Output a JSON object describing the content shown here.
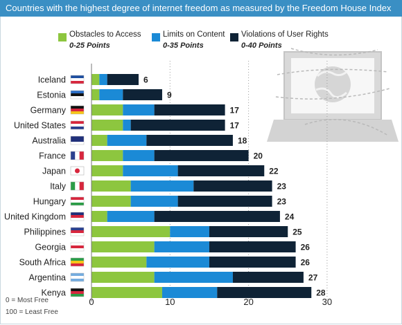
{
  "title": "Countries with the highest degree of internet freedom as measured by the Freedom House Index",
  "legend": [
    {
      "label": "Obstacles to Access",
      "range": "0-25 Points"
    },
    {
      "label": "Limits on Content",
      "range": "0-35 Points"
    },
    {
      "label": "Violations of User Rights",
      "range": "0-40 Points"
    }
  ],
  "notes": {
    "most_free": "0 = Most Free",
    "least_free": "100 = Least Free"
  },
  "colors": {
    "access": "#8dc63f",
    "content": "#1b8ad6",
    "violations": "#0f2336",
    "title_bg": "#3a8fc4"
  },
  "chart_data": {
    "type": "bar",
    "orientation": "horizontal",
    "stacked": true,
    "categories": [
      "Iceland",
      "Estonia",
      "Germany",
      "United States",
      "Australia",
      "France",
      "Japan",
      "Italy",
      "Hungary",
      "United Kingdom",
      "Philippines",
      "Georgia",
      "South Africa",
      "Argentina",
      "Kenya"
    ],
    "series": [
      {
        "name": "Obstacles to Access",
        "values": [
          1,
          1,
          4,
          4,
          2,
          4,
          4,
          5,
          5,
          2,
          10,
          8,
          7,
          8,
          9
        ]
      },
      {
        "name": "Limits on Content",
        "values": [
          1,
          3,
          4,
          1,
          5,
          4,
          7,
          8,
          6,
          6,
          5,
          7,
          8,
          10,
          7
        ]
      },
      {
        "name": "Violations of User Rights",
        "values": [
          4,
          5,
          9,
          12,
          11,
          12,
          11,
          10,
          12,
          16,
          10,
          11,
          11,
          9,
          12
        ]
      }
    ],
    "totals": [
      "6",
      "9",
      "17",
      "17",
      "18",
      "20",
      "22",
      "23",
      "23",
      "24",
      "25",
      "26",
      "26",
      "27",
      "28"
    ],
    "xlim": [
      0,
      30
    ],
    "xticks": [
      "0",
      "10",
      "20",
      "30"
    ],
    "grid": "dotted vertical lines at 10, 20 and 30",
    "legend_position": "top"
  }
}
